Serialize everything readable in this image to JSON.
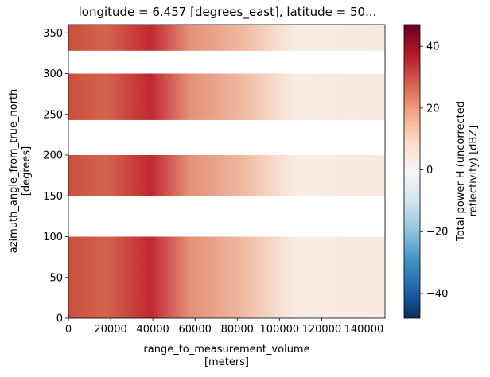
{
  "chart_data": {
    "type": "heatmap",
    "title": "longitude = 6.457 [degrees_east], latitude = 50...",
    "xlabel_line1": "range_to_measurement_volume",
    "xlabel_line2": "[meters]",
    "ylabel_line1": "azimuth_angle_from_true_north",
    "ylabel_line2": "[degrees]",
    "xlim": [
      0,
      150000
    ],
    "ylim": [
      0,
      360
    ],
    "x_ticks": [
      0,
      20000,
      40000,
      60000,
      80000,
      100000,
      120000,
      140000
    ],
    "x_tick_labels": [
      "0",
      "20000",
      "40000",
      "60000",
      "80000",
      "100000",
      "120000",
      "140000"
    ],
    "y_ticks": [
      0,
      50,
      100,
      150,
      200,
      250,
      300,
      350
    ],
    "y_tick_labels": [
      "0",
      "50",
      "100",
      "150",
      "200",
      "250",
      "300",
      "350"
    ],
    "data_azimuth_bands": [
      [
        0,
        100
      ],
      [
        150,
        200
      ],
      [
        243,
        300
      ],
      [
        328,
        360
      ]
    ],
    "colorbar": {
      "label_line1": "Total power H (uncorrected",
      "label_line2": "reflectivity) [dBZ]",
      "vmin": -48,
      "vmax": 47,
      "ticks": [
        -40,
        -20,
        0,
        20,
        40
      ],
      "tick_labels": [
        "−40",
        "−20",
        "0",
        "20",
        "40"
      ],
      "colormap": "RdBu_r",
      "colormap_stops": [
        "#053061",
        "#2166ac",
        "#4393c3",
        "#92c5de",
        "#d1e5f0",
        "#f7f7f7",
        "#fddbc7",
        "#f4a582",
        "#d6604d",
        "#b2182b",
        "#67001f"
      ]
    },
    "grid": false
  }
}
